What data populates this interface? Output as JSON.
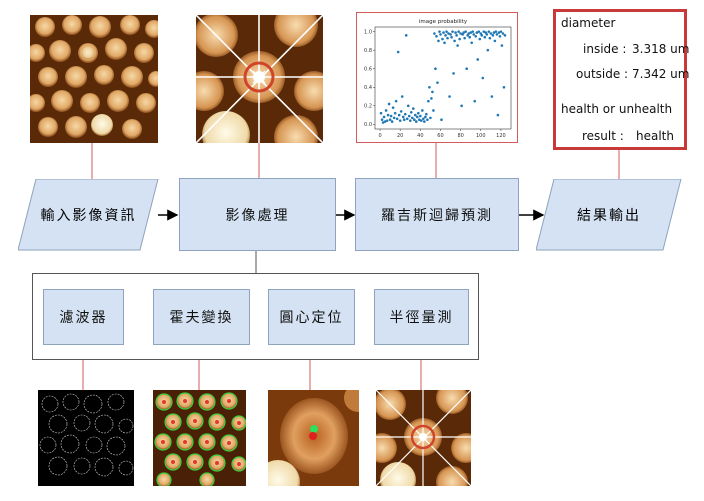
{
  "flow": {
    "input": "輸入影像資訊",
    "process": "影像處理",
    "predict": "羅吉斯迴歸預測",
    "output": "結果輸出"
  },
  "sub": {
    "filter": "濾波器",
    "hough": "霍夫變換",
    "center": "圓心定位",
    "radius": "半徑量測"
  },
  "chart": {
    "title": "image probability"
  },
  "chart_data": {
    "type": "scatter",
    "title": "image probability",
    "xlabel": "",
    "ylabel": "",
    "xlim": [
      -5,
      130
    ],
    "ylim": [
      -0.05,
      1.05
    ],
    "xticks": [
      "0",
      "20",
      "40",
      "60",
      "80",
      "100",
      "120"
    ],
    "yticks": [
      "0.0",
      "0.2",
      "0.4",
      "0.6",
      "0.8",
      "1.0"
    ],
    "points": [
      [
        1,
        0.12
      ],
      [
        2,
        0.05
      ],
      [
        3,
        0.02
      ],
      [
        4,
        0.08
      ],
      [
        5,
        0.03
      ],
      [
        6,
        0.15
      ],
      [
        7,
        0.04
      ],
      [
        8,
        0.1
      ],
      [
        9,
        0.22
      ],
      [
        10,
        0.05
      ],
      [
        11,
        0.09
      ],
      [
        12,
        0.03
      ],
      [
        13,
        0.18
      ],
      [
        14,
        0.07
      ],
      [
        15,
        0.12
      ],
      [
        16,
        0.25
      ],
      [
        17,
        0.06
      ],
      [
        18,
        0.78
      ],
      [
        19,
        0.1
      ],
      [
        20,
        0.04
      ],
      [
        21,
        0.14
      ],
      [
        22,
        0.3
      ],
      [
        23,
        0.08
      ],
      [
        24,
        0.05
      ],
      [
        25,
        0.11
      ],
      [
        26,
        0.96
      ],
      [
        27,
        0.06
      ],
      [
        28,
        0.2
      ],
      [
        29,
        0.09
      ],
      [
        30,
        0.04
      ],
      [
        31,
        0.13
      ],
      [
        32,
        0.07
      ],
      [
        33,
        0.17
      ],
      [
        34,
        0.05
      ],
      [
        35,
        0.1
      ],
      [
        36,
        0.03
      ],
      [
        37,
        0.08
      ],
      [
        38,
        0.12
      ],
      [
        39,
        0.05
      ],
      [
        40,
        0.09
      ],
      [
        41,
        0.04
      ],
      [
        42,
        0.15
      ],
      [
        43,
        0.06
      ],
      [
        44,
        0.03
      ],
      [
        45,
        0.08
      ],
      [
        46,
        0.11
      ],
      [
        47,
        0.05
      ],
      [
        48,
        0.25
      ],
      [
        49,
        0.4
      ],
      [
        50,
        0.07
      ],
      [
        51,
        0.28
      ],
      [
        52,
        0.35
      ],
      [
        53,
        0.15
      ],
      [
        54,
        0.98
      ],
      [
        55,
        0.6
      ],
      [
        56,
        0.95
      ],
      [
        57,
        0.45
      ],
      [
        58,
        0.9
      ],
      [
        59,
        1.0
      ],
      [
        60,
        0.97
      ],
      [
        61,
        0.05
      ],
      [
        62,
        0.92
      ],
      [
        63,
        0.99
      ],
      [
        64,
        0.88
      ],
      [
        65,
        0.96
      ],
      [
        66,
        1.0
      ],
      [
        67,
        0.93
      ],
      [
        68,
        0.98
      ],
      [
        69,
        0.3
      ],
      [
        70,
        0.97
      ],
      [
        71,
        0.94
      ],
      [
        72,
        1.0
      ],
      [
        73,
        0.55
      ],
      [
        74,
        0.9
      ],
      [
        75,
        0.99
      ],
      [
        76,
        0.96
      ],
      [
        77,
        0.85
      ],
      [
        78,
        1.0
      ],
      [
        79,
        0.92
      ],
      [
        80,
        0.98
      ],
      [
        81,
        0.2
      ],
      [
        82,
        0.97
      ],
      [
        83,
        0.99
      ],
      [
        84,
        0.93
      ],
      [
        85,
        1.0
      ],
      [
        86,
        0.6
      ],
      [
        87,
        0.96
      ],
      [
        88,
        0.98
      ],
      [
        89,
        0.94
      ],
      [
        90,
        0.99
      ],
      [
        91,
        0.88
      ],
      [
        92,
        1.0
      ],
      [
        93,
        0.97
      ],
      [
        94,
        0.25
      ],
      [
        95,
        0.95
      ],
      [
        96,
        0.99
      ],
      [
        97,
        0.7
      ],
      [
        98,
        1.0
      ],
      [
        99,
        0.92
      ],
      [
        100,
        0.98
      ],
      [
        101,
        0.96
      ],
      [
        102,
        0.5
      ],
      [
        103,
        1.0
      ],
      [
        104,
        0.94
      ],
      [
        105,
        0.99
      ],
      [
        106,
        0.97
      ],
      [
        107,
        0.8
      ],
      [
        108,
        1.0
      ],
      [
        109,
        0.93
      ],
      [
        110,
        0.98
      ],
      [
        111,
        0.3
      ],
      [
        112,
        0.96
      ],
      [
        113,
        0.99
      ],
      [
        114,
        0.9
      ],
      [
        115,
        1.0
      ],
      [
        116,
        0.97
      ],
      [
        117,
        0.1
      ],
      [
        118,
        0.99
      ],
      [
        119,
        0.95
      ],
      [
        120,
        1.0
      ],
      [
        121,
        0.85
      ],
      [
        122,
        0.98
      ],
      [
        123,
        0.4
      ],
      [
        124,
        0.96
      ]
    ]
  },
  "result": {
    "diameter_label": "diameter",
    "inside_label": "inside :",
    "inside_value": "3.318 um",
    "outside_label": "outside :",
    "outside_value": "7.342 um",
    "health_label": "health or unhealth",
    "result_label": "result :",
    "result_value": "health"
  },
  "colors": {
    "box_fill": "#d4e2f3",
    "connector": "#d35b5b",
    "panel_border": "#c83a3a"
  }
}
